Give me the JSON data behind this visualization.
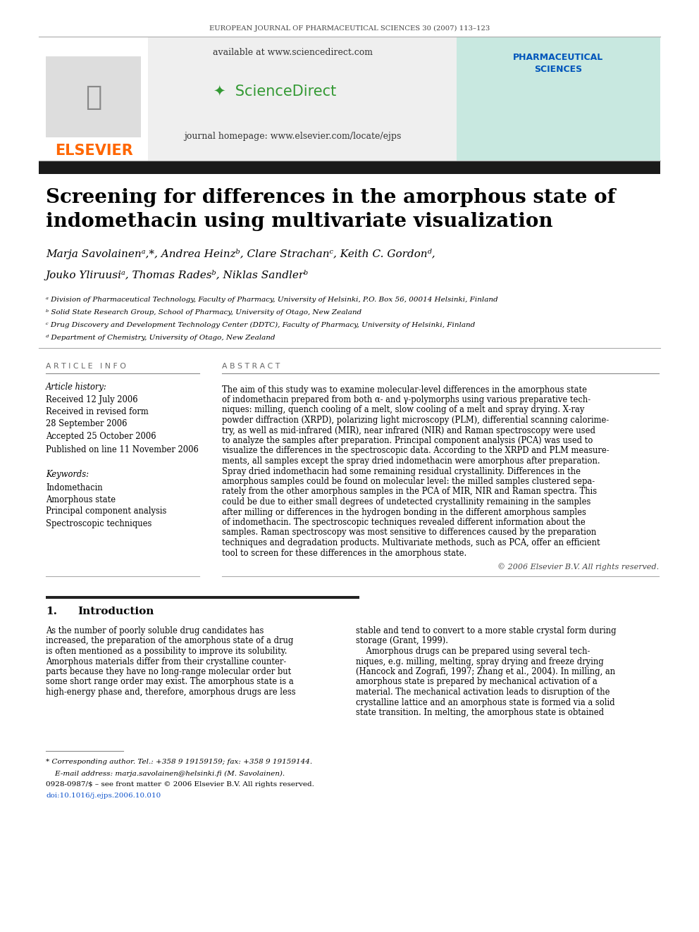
{
  "journal_header": "EUROPEAN JOURNAL OF PHARMACEUTICAL SCIENCES 30 (2007) 113–123",
  "available_text": "available at www.sciencedirect.com",
  "sciencedirect_text": "ScienceDirect",
  "journal_homepage": "journal homepage: www.elsevier.com/locate/ejps",
  "elsevier_text": "ELSEVIER",
  "title_line1": "Screening for differences in the amorphous state of",
  "title_line2": "indomethacin using multivariate visualization",
  "author_line1": "Marja Savolainenᵃ,*, Andrea Heinzᵇ, Clare Strachanᶜ, Keith C. Gordonᵈ,",
  "author_line2": "Jouko Yliruusiᵃ, Thomas Radesᵇ, Niklas Sandlerᵇ",
  "affil_a": "ᵃ Division of Pharmaceutical Technology, Faculty of Pharmacy, University of Helsinki, P.O. Box 56, 00014 Helsinki, Finland",
  "affil_b": "ᵇ Solid State Research Group, School of Pharmacy, University of Otago, New Zealand",
  "affil_c": "ᶜ Drug Discovery and Development Technology Center (DDTC), Faculty of Pharmacy, University of Helsinki, Finland",
  "affil_d": "ᵈ Department of Chemistry, University of Otago, New Zealand",
  "article_info_header": "A R T I C L E   I N F O",
  "abstract_header": "A B S T R A C T",
  "article_history_label": "Article history:",
  "received1": "Received 12 July 2006",
  "received2": "Received in revised form",
  "received2b": "28 September 2006",
  "accepted": "Accepted 25 October 2006",
  "published": "Published on line 11 November 2006",
  "keywords_label": "Keywords:",
  "keyword1": "Indomethacin",
  "keyword2": "Amorphous state",
  "keyword3": "Principal component analysis",
  "keyword4": "Spectroscopic techniques",
  "abstract_line1": "The aim of this study was to examine molecular-level differences in the amorphous state",
  "abstract_line2": "of indomethacin prepared from both α- and γ-polymorphs using various preparative tech-",
  "abstract_line3": "niques: milling, quench cooling of a melt, slow cooling of a melt and spray drying. X-ray",
  "abstract_line4": "powder diffraction (XRPD), polarizing light microscopy (PLM), differential scanning calorime-",
  "abstract_line5": "try, as well as mid-infrared (MIR), near infrared (NIR) and Raman spectroscopy were used",
  "abstract_line6": "to analyze the samples after preparation. Principal component analysis (PCA) was used to",
  "abstract_line7": "visualize the differences in the spectroscopic data. According to the XRPD and PLM measure-",
  "abstract_line8": "ments, all samples except the spray dried indomethacin were amorphous after preparation.",
  "abstract_line9": "Spray dried indomethacin had some remaining residual crystallinity. Differences in the",
  "abstract_line10": "amorphous samples could be found on molecular level: the milled samples clustered sepa-",
  "abstract_line11": "rately from the other amorphous samples in the PCA of MIR, NIR and Raman spectra. This",
  "abstract_line12": "could be due to either small degrees of undetected crystallinity remaining in the samples",
  "abstract_line13": "after milling or differences in the hydrogen bonding in the different amorphous samples",
  "abstract_line14": "of indomethacin. The spectroscopic techniques revealed different information about the",
  "abstract_line15": "samples. Raman spectroscopy was most sensitive to differences caused by the preparation",
  "abstract_line16": "techniques and degradation products. Multivariate methods, such as PCA, offer an efficient",
  "abstract_line17": "tool to screen for these differences in the amorphous state.",
  "copyright": "© 2006 Elsevier B.V. All rights reserved.",
  "section1_num": "1.",
  "section1_title": "Introduction",
  "intro_col1_lines": [
    "As the number of poorly soluble drug candidates has",
    "increased, the preparation of the amorphous state of a drug",
    "is often mentioned as a possibility to improve its solubility.",
    "Amorphous materials differ from their crystalline counter-",
    "parts because they have no long-range molecular order but",
    "some short range order may exist. The amorphous state is a",
    "high-energy phase and, therefore, amorphous drugs are less"
  ],
  "intro_col2_lines": [
    "stable and tend to convert to a more stable crystal form during",
    "storage (Grant, 1999).",
    "    Amorphous drugs can be prepared using several tech-",
    "niques, e.g. milling, melting, spray drying and freeze drying",
    "(Hancock and Zografi, 1997; Zhang et al., 2004). In milling, an",
    "amorphous state is prepared by mechanical activation of a",
    "material. The mechanical activation leads to disruption of the",
    "crystalline lattice and an amorphous state is formed via a solid",
    "state transition. In melting, the amorphous state is obtained"
  ],
  "footnote1": "* Corresponding author. Tel.: +358 9 19159159; fax: +358 9 19159144.",
  "footnote2": "    E-mail address: marja.savolainen@helsinki.fi (M. Savolainen).",
  "footnote3": "0928-0987/$ – see front matter © 2006 Elsevier B.V. All rights reserved.",
  "footnote4": "doi:10.1016/j.ejps.2006.10.010",
  "bg_color": "#ffffff",
  "text_color": "#000000",
  "link_color": "#1155cc",
  "elsevier_color": "#ff6600",
  "black_bar_color": "#1a1a1a",
  "section_bar_color": "#222222",
  "gray_line_color": "#aaaaaa",
  "abstract_text": "The aim of this study was to examine molecular-level differences in the amorphous state of indomethacin prepared from both α- and γ-polymorphs using various preparative techniques: milling, quench cooling of a melt, slow cooling of a melt and spray drying. X-ray powder diffraction (XRPD), polarizing light microscopy (PLM), differential scanning calorimetry, as well as mid-infrared (MIR), near infrared (NIR) and Raman spectroscopy were used to analyze the samples after preparation. Principal component analysis (PCA) was used to visualize the differences in the spectroscopic data. According to the XRPD and PLM measurements, all samples except the spray dried indomethacin were amorphous after preparation. Spray dried indomethacin had some remaining residual crystallinity. Differences in the amorphous samples could be found on molecular level: the milled samples clustered separately from the other amorphous samples in the PCA of MIR, NIR and Raman spectra. This could be due to either small degrees of undetected crystallinity remaining in the samples after milling or differences in the hydrogen bonding in the different amorphous samples of indomethacin. The spectroscopic techniques revealed different information about the samples. Raman spectroscopy was most sensitive to differences caused by the preparation techniques and degradation products. Multivariate methods, such as PCA, offer an efficient tool to screen for these differences in the amorphous state."
}
